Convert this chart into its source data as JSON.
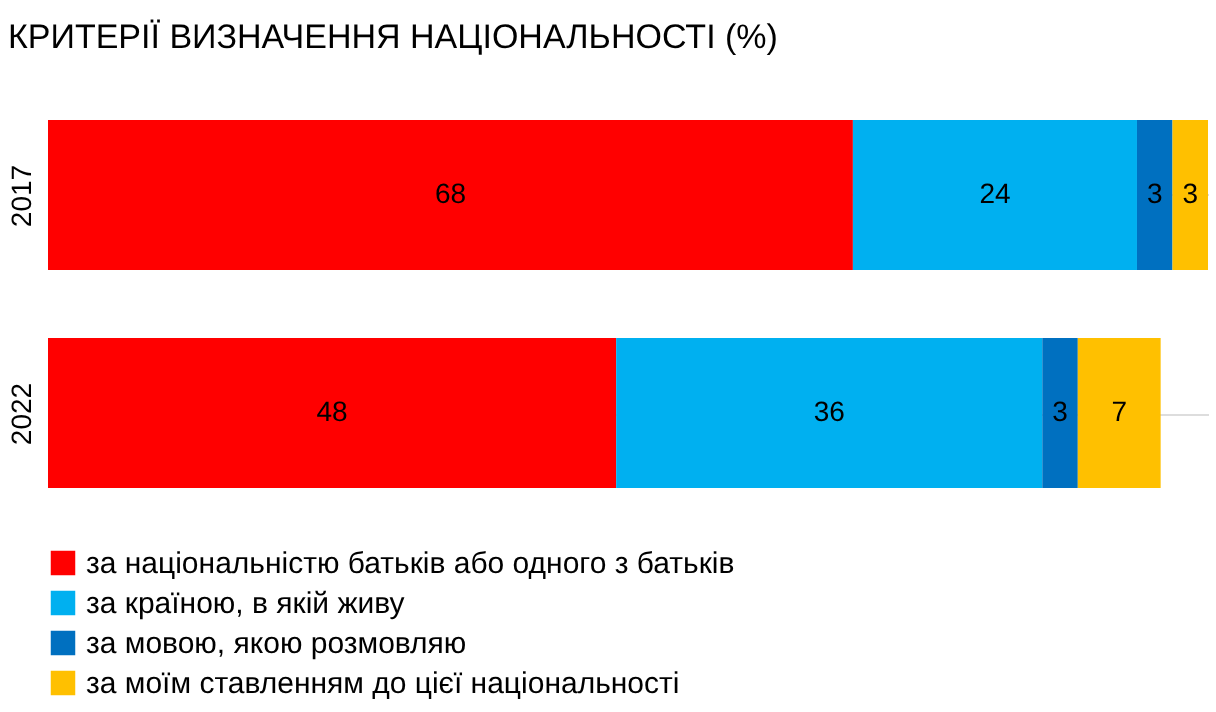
{
  "chart_data": {
    "type": "bar",
    "title": "КРИТЕРІЇ ВИЗНАЧЕННЯ НАЦІОНАЛЬНОСТІ (%)",
    "orientation": "horizontal",
    "stacked": true,
    "data_labels": true,
    "legend": "bottom",
    "categories": [
      "2017",
      "2022"
    ],
    "series": [
      {
        "name": "за національністю батьків або одного з батьків",
        "color": "#ff0000",
        "values": [
          68,
          48
        ]
      },
      {
        "name": "за країною, в якій живу",
        "color": "#00b0f0",
        "values": [
          24,
          36
        ]
      },
      {
        "name": "за мовою, якою розмовляю",
        "color": "#0070c0",
        "values": [
          3,
          3
        ]
      },
      {
        "name": "за моїм ставленням до цієї національності",
        "color": "#ffc000",
        "values": [
          3,
          7
        ]
      }
    ]
  }
}
